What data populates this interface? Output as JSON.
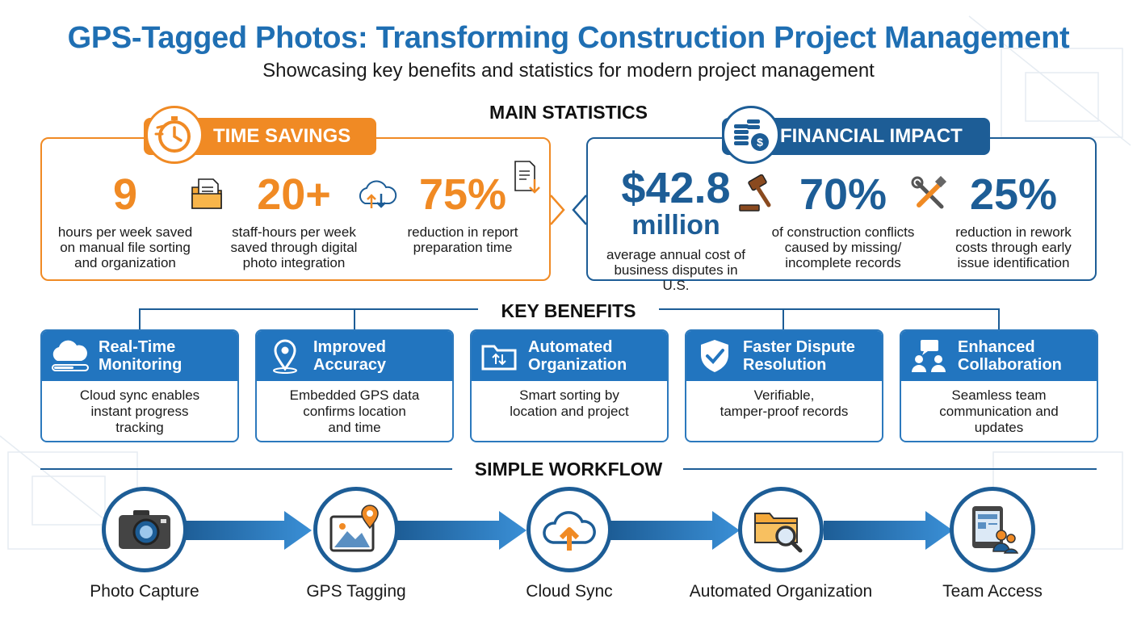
{
  "title": "GPS-Tagged Photos: Transforming Construction Project Management",
  "subtitle": "Showcasing key benefits and statistics for modern project management",
  "colors": {
    "orange": "#f08a24",
    "blue": "#1d5d96",
    "benefit_blue": "#2275bf",
    "title_blue": "#1f6fb3"
  },
  "main_statistics": {
    "heading": "MAIN STATISTICS",
    "time_savings": {
      "label": "TIME SAVINGS",
      "icon": "stopwatch-icon",
      "stats": [
        {
          "value": "9",
          "desc": [
            "hours per week saved",
            "on manual file sorting",
            "and organization"
          ],
          "icon": "folder-document-icon"
        },
        {
          "value": "20+",
          "desc": [
            "staff-hours per week",
            "saved through digital",
            "photo integration"
          ],
          "icon": "cloud-sync-icon"
        },
        {
          "value": "75%",
          "desc": [
            "reduction in report",
            "preparation time"
          ],
          "icon": "report-download-icon"
        }
      ]
    },
    "financial_impact": {
      "label": "FINANCIAL IMPACT",
      "icon": "coins-icon",
      "stats": [
        {
          "value": "$42.8",
          "value2": "million",
          "desc": [
            "average annual cost of",
            "business disputes in U.S."
          ],
          "icon": "gavel-icon"
        },
        {
          "value": "70%",
          "desc": [
            "of construction conflicts",
            "caused by missing/",
            "incomplete records"
          ],
          "icon": "tools-icon"
        },
        {
          "value": "25%",
          "desc": [
            "reduction in rework",
            "costs through early",
            "issue identification"
          ]
        }
      ]
    }
  },
  "key_benefits": {
    "heading": "KEY BENEFITS",
    "items": [
      {
        "title": [
          "Real-Time",
          "Monitoring"
        ],
        "desc": [
          "Cloud sync enables",
          "instant progress",
          "tracking"
        ],
        "icon": "cloud-progress-icon"
      },
      {
        "title": [
          "Improved",
          "Accuracy"
        ],
        "desc": [
          "Embedded GPS data",
          "confirms location",
          "and time"
        ],
        "icon": "location-pin-icon"
      },
      {
        "title": [
          "Automated",
          "Organization"
        ],
        "desc": [
          "Smart sorting by",
          "location and project"
        ],
        "icon": "folder-sort-icon"
      },
      {
        "title": [
          "Faster Dispute",
          "Resolution"
        ],
        "desc": [
          "Verifiable,",
          "tamper-proof records"
        ],
        "icon": "shield-check-icon"
      },
      {
        "title": [
          "Enhanced",
          "Collaboration"
        ],
        "desc": [
          "Seamless team",
          "communication and",
          "updates"
        ],
        "icon": "team-chat-icon"
      }
    ]
  },
  "workflow": {
    "heading": "SIMPLE WORKFLOW",
    "steps": [
      {
        "label": "Photo Capture",
        "icon": "camera-icon"
      },
      {
        "label": "GPS Tagging",
        "icon": "photo-pin-icon"
      },
      {
        "label": "Cloud Sync",
        "icon": "cloud-upload-icon"
      },
      {
        "label": "Automated Organization",
        "icon": "folder-search-icon"
      },
      {
        "label": "Team Access",
        "icon": "tablet-team-icon"
      }
    ]
  }
}
